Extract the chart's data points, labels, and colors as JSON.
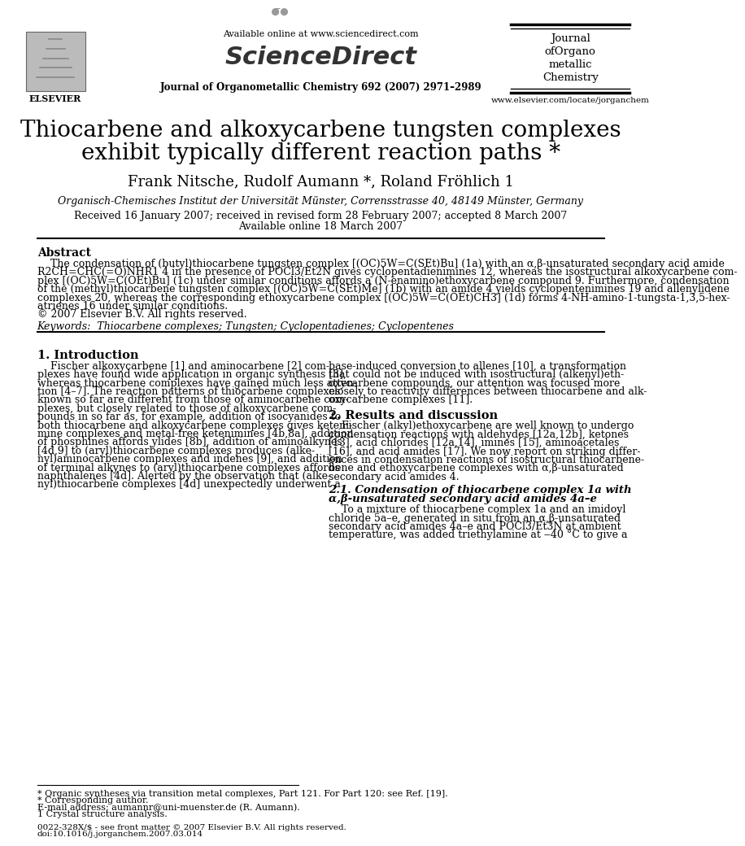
{
  "bg_color": "#ffffff",
  "header_available_online": "Available online at www.sciencedirect.com",
  "header_journal_line": "Journal of Organometallic Chemistry 692 (2007) 2971–2989",
  "header_journal_name": "Journal\nofOrgano\nmetallic\nChemistry",
  "header_url": "www.elsevier.com/locate/jorganchem",
  "title_line1": "Thiocarbene and alkoxycarbene tungsten complexes",
  "title_line2": "exhibit typically different reaction paths *",
  "authors": "Frank Nitsche, Rudolf Aumann *, Roland Fröhlich 1",
  "affiliation": "Organisch-Chemisches Institut der Universität Münster, Corrensstrasse 40, 48149 Münster, Germany",
  "received": "Received 16 January 2007; received in revised form 28 February 2007; accepted 8 March 2007",
  "available": "Available online 18 March 2007",
  "abstract_title": "Abstract",
  "abstract_lines": [
    "    The condensation of (butyl)thiocarbene tungsten complex [(OC)5W=C(SEt)Bu] (1a) with an α,β-unsaturated secondary acid amide",
    "R2CH=CHC(=O)NHR1 4 in the presence of POCl3/Et2N gives cyclopentadienimines 12, whereas the isostructural alkoxycarbene com-",
    "plex [(OC)5W=C(OEt)Bu] (1c) under similar conditions affords a (N-enamino)ethoxycarbene compound 9. Furthermore, condensation",
    "of the (methyl)thiocarbene tungsten complex [(OC)5W=C(SEt)Me] (1b) with an amide 4 yields cyclopentenimines 19 and allenylidene",
    "complexes 20, whereas the corresponding ethoxycarbene complex [(OC)5W=C(OEt)CH3] (1d) forms 4-NH-amino-1-tungsta-1,3,5-hex-",
    "atrienes 16 under similar conditions.",
    "© 2007 Elsevier B.V. All rights reserved."
  ],
  "keywords": "Keywords:  Thiocarbene complexes; Tungsten; Cyclopentadienes; Cyclopentenes",
  "section1_title": "1. Introduction",
  "intro_col1_lines": [
    "    Fischer alkoxycarbene [1] and aminocarbene [2] com-",
    "plexes have found wide application in organic synthesis [3],",
    "whereas thiocarbene complexes have gained much less atten-",
    "tion [4–7]. The reaction patterns of thiocarbene complexes",
    "known so far are different from those of aminocarbene com-",
    "plexes, but closely related to those of alkoxycarbene com-",
    "pounds in so far as, for example, addition of isocyanides to",
    "both thiocarbene and alkoxycarbene complexes gives keteni-",
    "mine complexes and metal-free ketenimines [4b,8a], addition",
    "of phosphines affords ylides [8b], addition of aminoalkynes",
    "[4d,9] to (aryl)thiocarbene complexes produces (alke-",
    "nyl)aminocarbene complexes and indenes [9], and addition",
    "of terminal alkynes to (aryl)thiocarbene complexes affords",
    "naphthalenes [4d]. Alerted by the observation that (alke-",
    "nyl)thiocarbene complexes [4d] unexpectedly underwent a"
  ],
  "intro_col2_lines": [
    "base-induced conversion to allenes [10], a transformation",
    "that could not be induced with isostructural (alkenyl)eth-",
    "oxycarbene compounds, our attention was focused more",
    "closely to reactivity differences between thiocarbene and alk-",
    "oxycarbene complexes [11]."
  ],
  "section2_title": "2. Results and discussion",
  "sec2_lines": [
    "    Fischer (alkyl)ethoxycarbene are well known to undergo",
    "condensation reactions with aldehydes [12a,12b], ketones",
    "[13], acid chlorides [12a,14], imines [15], aminoacetales",
    "[16], and acid amides [17]. We now report on striking differ-",
    "ences in condensation reactions of isostructural thiocarbene-",
    "bene and ethoxycarbene complexes with α,β-unsaturated",
    "secondary acid amides 4."
  ],
  "subsection_title_lines": [
    "2.1. Condensation of thiocarbene complex 1a with",
    "α,β-unsaturated secondary acid amides 4a–e"
  ],
  "subsection_body_lines": [
    "    To a mixture of thiocarbene complex 1a and an imidoyl",
    "chloride 5a–e, generated in situ from an α,β-unsaturated",
    "secondary acid amides 4a–e and POCl3/Et3N at ambient",
    "temperature, was added triethylamine at ‒40 °C to give a"
  ],
  "footnote_star": "* Organic syntheses via transition metal complexes, Part 121. For Part 120: see Ref. [19].",
  "footnote_asterisk": "* Corresponding author.",
  "footnote_email": "E-mail address: aumannr@uni-muenster.de (R. Aumann).",
  "footnote_1": "1 Crystal structure analysis.",
  "footer_issn": "0022-328X/$ - see front matter © 2007 Elsevier B.V. All rights reserved.",
  "footer_doi": "doi:10.1016/j.jorganchem.2007.03.014"
}
